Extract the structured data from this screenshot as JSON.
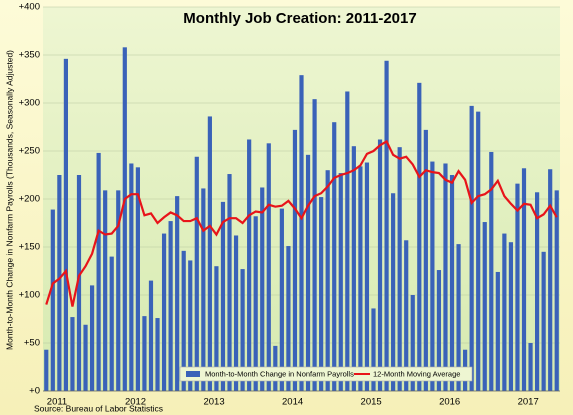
{
  "chart_data": {
    "type": "bar",
    "title": "Monthly Job Creation:  2011-2017",
    "y_label": "Month-to-Month Change in Nonfarm Payrolls (Thousands, Seasonally Adjusted)",
    "source": "Source: Bureau of Labor Statistics",
    "categories": [
      "2011",
      null,
      null,
      null,
      null,
      null,
      null,
      null,
      null,
      null,
      null,
      null,
      "2012",
      null,
      null,
      null,
      null,
      null,
      null,
      null,
      null,
      null,
      null,
      null,
      "2013",
      null,
      null,
      null,
      null,
      null,
      null,
      null,
      null,
      null,
      null,
      null,
      "2014",
      null,
      null,
      null,
      null,
      null,
      null,
      null,
      null,
      null,
      null,
      null,
      "2015",
      null,
      null,
      null,
      null,
      null,
      null,
      null,
      null,
      null,
      null,
      null,
      "2016",
      null,
      null,
      null,
      null,
      null,
      null,
      null,
      null,
      null,
      null,
      null,
      "2017",
      null,
      null,
      null,
      null,
      null,
      null
    ],
    "series": [
      {
        "name": "Month-to-Month Change in Nonfarm Payrolls",
        "type": "bar",
        "color": "#3a62b8",
        "values": [
          43,
          189,
          225,
          346,
          77,
          225,
          69,
          110,
          248,
          209,
          140,
          209,
          358,
          237,
          233,
          78,
          115,
          76,
          164,
          177,
          203,
          146,
          136,
          244,
          211,
          286,
          130,
          197,
          226,
          162,
          127,
          262,
          182,
          212,
          258,
          47,
          190,
          151,
          272,
          329,
          246,
          304,
          202,
          230,
          280,
          227,
          312,
          255,
          234,
          238,
          86,
          262,
          344,
          206,
          254,
          157,
          100,
          321,
          272,
          239,
          126,
          237,
          225,
          153,
          43,
          297,
          291,
          176,
          249,
          124,
          164,
          155,
          216,
          232,
          50,
          207,
          145,
          231,
          209
        ]
      },
      {
        "name": "12-Month Moving Average",
        "type": "line",
        "color": "#e8141a",
        "values": [
          90,
          112,
          117,
          125,
          88,
          120,
          130,
          143,
          167,
          163,
          164,
          172,
          200,
          205,
          205,
          183,
          185,
          175,
          181,
          186,
          183,
          177,
          177,
          180,
          167,
          172,
          163,
          176,
          180,
          180,
          175,
          183,
          187,
          186,
          194,
          192,
          193,
          198,
          190,
          180,
          193,
          203,
          206,
          213,
          222,
          225,
          227,
          230,
          235,
          247,
          250,
          256,
          260,
          246,
          242,
          244,
          236,
          223,
          230,
          228,
          227,
          220,
          217,
          229,
          220,
          196,
          203,
          205,
          210,
          219,
          203,
          195,
          188,
          195,
          194,
          180,
          184,
          193,
          181
        ]
      }
    ],
    "ylim": [
      0,
      400
    ],
    "yticks": [
      {
        "value": 0,
        "label": "+0"
      },
      {
        "value": 50,
        "label": "+50"
      },
      {
        "value": 100,
        "label": "+100"
      },
      {
        "value": 150,
        "label": "+150"
      },
      {
        "value": 200,
        "label": "+200"
      },
      {
        "value": 250,
        "label": "+250"
      },
      {
        "value": 300,
        "label": "+300"
      },
      {
        "value": 350,
        "label": "+350"
      },
      {
        "value": 400,
        "label": "+400"
      }
    ],
    "grid": true,
    "legend": "bottom"
  }
}
